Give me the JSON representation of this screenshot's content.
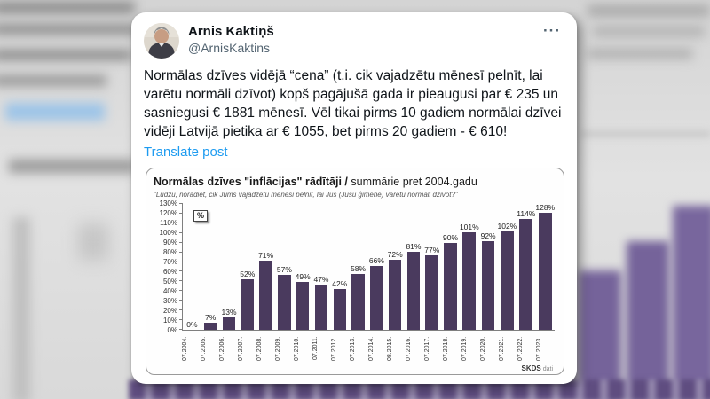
{
  "tweet": {
    "author_name": "Arnis Kaktiņš",
    "author_handle": "@ArnisKaktins",
    "more_label": "···",
    "body": "Normālas dzīves vidējā “cena” (t.i. cik vajadzētu mēnesī pelnīt, lai varētu normāli dzīvot) kopš pagājušā gada ir pieaugusi par € 235 un sasniegusi € 1881 mēnesī. Vēl tikai pirms 10 gadiem normālai dzīvei vidēji Latvijā pietika ar € 1055, bet pirms 20 gadiem - € 610!",
    "translate_label": "Translate post"
  },
  "chart": {
    "title_bold": "Normālas dzīves \"inflācijas\" rādītāji /",
    "title_regular": " summārie pret 2004.gadu",
    "subtitle": "\"Lūdzu, norādiet, cik Jums vajadzētu mēnesī pelnīt, lai Jūs (Jūsu ģimene) varētu normāli dzīvot?\"",
    "unit_label": "%",
    "source_bold": "SKDS",
    "source_regular": " dati"
  },
  "chart_data": {
    "type": "bar",
    "title": "Normālas dzīves \"inflācijas\" rādītāji / summārie pret 2004.gadu",
    "subtitle": "\"Lūdzu, norādiet, cik Jums vajadzētu mēnesī pelnīt, lai Jūs (Jūsu ģimene) varētu normāli dzīvot?\"",
    "categories": [
      "07.2004.",
      "07.2005.",
      "07.2006.",
      "07.2007.",
      "07.2008.",
      "07.2009.",
      "07.2010.",
      "07.2011.",
      "07.2012.",
      "07.2013.",
      "07.2014.",
      "08.2015.",
      "07.2016.",
      "07.2017.",
      "07.2018.",
      "07.2019.",
      "07.2020.",
      "07.2021.",
      "07.2022.",
      "07.2023."
    ],
    "values": [
      0,
      7,
      13,
      52,
      71,
      57,
      49,
      47,
      42,
      58,
      66,
      72,
      81,
      77,
      90,
      101,
      92,
      102,
      114,
      128
    ],
    "value_suffix": "%",
    "xlabel": "",
    "ylabel": "%",
    "ylim": [
      0,
      130
    ],
    "ytick_step": 10,
    "grid": false,
    "legend": "none",
    "bar_color": "#4a3a5e",
    "source": "SKDS dati"
  }
}
